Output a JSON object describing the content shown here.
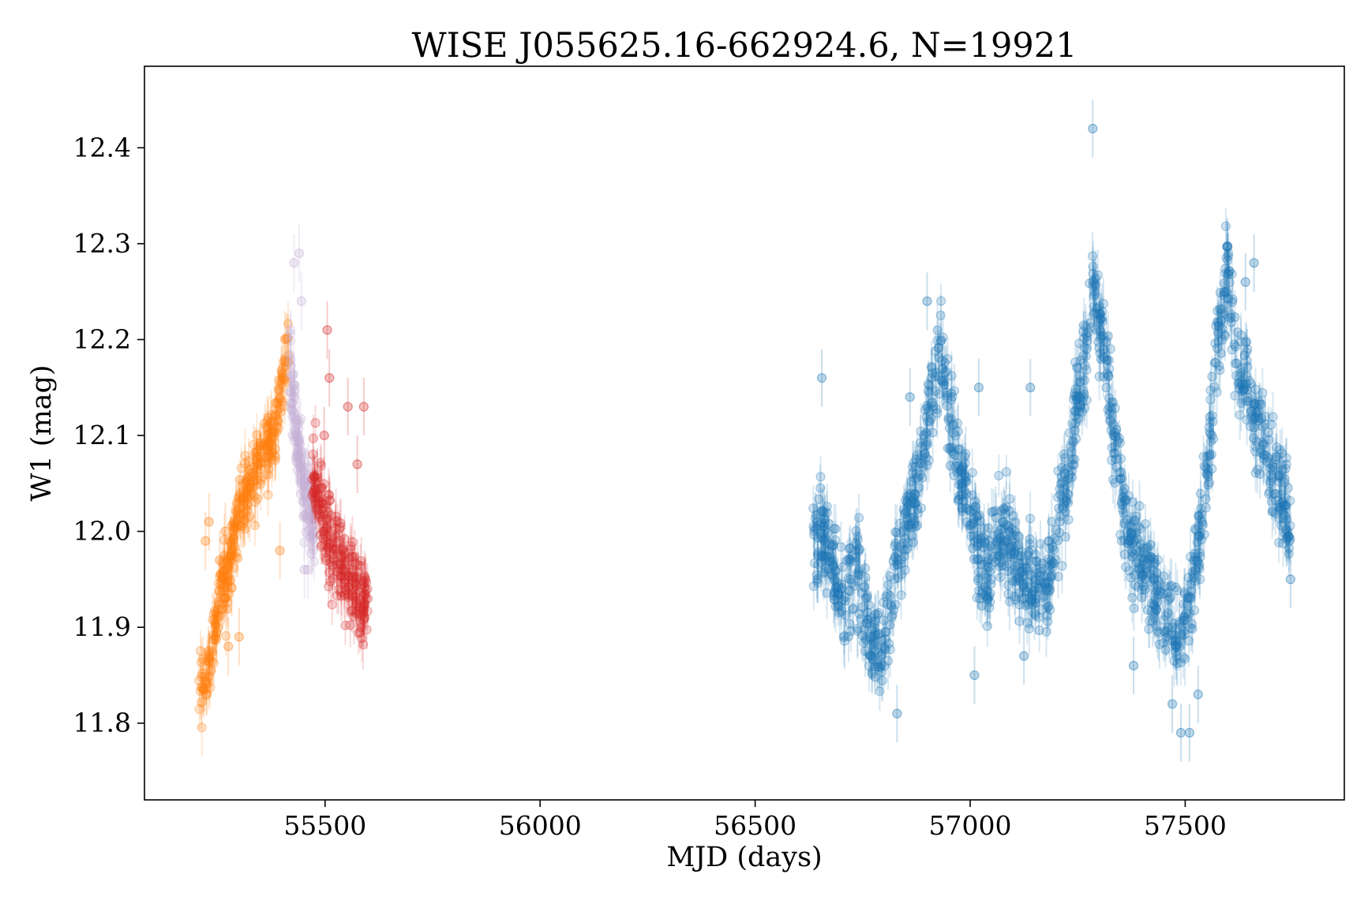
{
  "chart_data": {
    "type": "scatter",
    "title": "WISE J055625.16-662924.6, N=19921",
    "xlabel": "MJD (days)",
    "ylabel": "W1 (mag)",
    "xlim": [
      55080,
      57870
    ],
    "ylim": [
      12.485,
      11.72
    ],
    "y_inverted": true,
    "x_ticks": [
      55500,
      56000,
      56500,
      57000,
      57500
    ],
    "x_tick_labels": [
      "55500",
      "56000",
      "56500",
      "57000",
      "57500"
    ],
    "y_ticks": [
      11.8,
      11.9,
      12.0,
      12.1,
      12.2,
      12.3,
      12.4
    ],
    "y_tick_labels": [
      "11.8",
      "11.9",
      "12.0",
      "12.1",
      "12.2",
      "12.3",
      "12.4"
    ],
    "grid": false,
    "legend": null,
    "marker": "circle with vertical error bars, semi-transparent",
    "series": [
      {
        "color": "#ff7f0e",
        "x_range": [
          55205,
          55415
        ],
        "trend": [
          [
            55205,
            11.84
          ],
          [
            55225,
            11.84
          ],
          [
            55250,
            11.92
          ],
          [
            55265,
            11.96
          ],
          [
            55270,
            11.94
          ],
          [
            55300,
            12.02
          ],
          [
            55340,
            12.06
          ],
          [
            55380,
            12.1
          ],
          [
            55400,
            12.15
          ],
          [
            55415,
            12.19
          ]
        ],
        "spread": 0.035,
        "outliers": [
          [
            55230,
            12.01
          ],
          [
            55222,
            11.99
          ],
          [
            55255,
            11.97
          ],
          [
            55275,
            11.88
          ],
          [
            55300,
            11.89
          ],
          [
            55395,
            11.98
          ],
          [
            55268,
            12.0
          ]
        ]
      },
      {
        "color": "#c5b0d5",
        "x_range": [
          55418,
          55475
        ],
        "trend": [
          [
            55418,
            12.17
          ],
          [
            55435,
            12.1
          ],
          [
            55450,
            12.05
          ],
          [
            55465,
            12.02
          ],
          [
            55475,
            11.99
          ]
        ],
        "spread": 0.045,
        "outliers": [
          [
            55428,
            12.28
          ],
          [
            55440,
            12.29
          ],
          [
            55445,
            12.24
          ],
          [
            55452,
            11.96
          ],
          [
            55460,
            11.96
          ]
        ]
      },
      {
        "color": "#d62728",
        "x_range": [
          55470,
          55600
        ],
        "trend": [
          [
            55470,
            12.06
          ],
          [
            55500,
            12.01
          ],
          [
            55530,
            11.97
          ],
          [
            55560,
            11.94
          ],
          [
            55585,
            11.93
          ],
          [
            55600,
            11.94
          ]
        ],
        "spread": 0.045,
        "outliers": [
          [
            55510,
            12.16
          ],
          [
            55505,
            12.21
          ],
          [
            55553,
            12.13
          ],
          [
            55590,
            12.13
          ],
          [
            55498,
            12.1
          ],
          [
            55575,
            12.07
          ]
        ]
      },
      {
        "color": "#1f77b4",
        "x_range": [
          56635,
          57745
        ],
        "trend": [
          [
            56635,
            11.98
          ],
          [
            56660,
            12.0
          ],
          [
            56690,
            11.95
          ],
          [
            56715,
            11.93
          ],
          [
            56735,
            11.96
          ],
          [
            56770,
            11.88
          ],
          [
            56790,
            11.87
          ],
          [
            56830,
            11.96
          ],
          [
            56880,
            12.06
          ],
          [
            56930,
            12.19
          ],
          [
            56960,
            12.1
          ],
          [
            57000,
            12.02
          ],
          [
            57040,
            11.95
          ],
          [
            57070,
            12.01
          ],
          [
            57100,
            11.97
          ],
          [
            57150,
            11.95
          ],
          [
            57180,
            11.94
          ],
          [
            57210,
            12.01
          ],
          [
            57250,
            12.13
          ],
          [
            57290,
            12.25
          ],
          [
            57310,
            12.2
          ],
          [
            57340,
            12.08
          ],
          [
            57370,
            11.99
          ],
          [
            57400,
            11.97
          ],
          [
            57430,
            11.93
          ],
          [
            57460,
            11.91
          ],
          [
            57490,
            11.89
          ],
          [
            57520,
            11.95
          ],
          [
            57550,
            12.05
          ],
          [
            57575,
            12.19
          ],
          [
            57600,
            12.28
          ],
          [
            57620,
            12.18
          ],
          [
            57660,
            12.12
          ],
          [
            57700,
            12.07
          ],
          [
            57730,
            12.03
          ],
          [
            57745,
            12.0
          ]
        ],
        "spread": 0.05,
        "outliers": [
          [
            56830,
            11.81
          ],
          [
            56860,
            12.14
          ],
          [
            56900,
            12.24
          ],
          [
            57010,
            11.85
          ],
          [
            57125,
            11.87
          ],
          [
            57140,
            12.15
          ],
          [
            57285,
            12.42
          ],
          [
            57470,
            11.82
          ],
          [
            57490,
            11.79
          ],
          [
            57510,
            11.79
          ],
          [
            57530,
            11.83
          ],
          [
            57640,
            12.26
          ],
          [
            57660,
            12.28
          ],
          [
            57745,
            11.95
          ],
          [
            56655,
            12.16
          ],
          [
            57020,
            12.15
          ],
          [
            57380,
            11.86
          ]
        ]
      }
    ]
  }
}
